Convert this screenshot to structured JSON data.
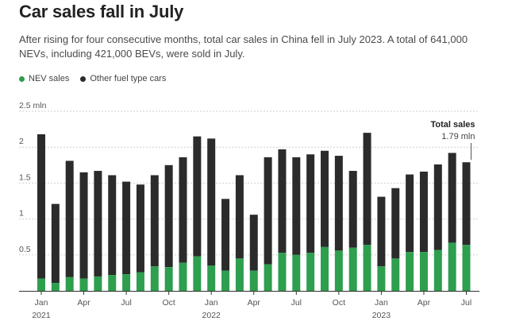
{
  "title": "Car sales fall in July",
  "subtitle": "After rising for four consecutive months, total car sales in China fell in July 2023. A total of 641,000 NEVs, including 421,000 BEVs, were sold in July.",
  "legend": {
    "nev_label": "NEV sales",
    "other_label": "Other fuel type cars"
  },
  "colors": {
    "nev": "#2e9e4f",
    "other": "#2b2b2b",
    "grid": "#cfcfcf",
    "axis": "#333333"
  },
  "annotation": {
    "title": "Total sales",
    "value": "1.79 mln"
  },
  "chart_data": {
    "type": "bar",
    "stacked": true,
    "title": "Car sales fall in July",
    "xlabel": "",
    "ylabel": "",
    "ylim": [
      0,
      2.5
    ],
    "yticks": [
      {
        "value": 0.5,
        "label": "0.5"
      },
      {
        "value": 1,
        "label": "1"
      },
      {
        "value": 1.5,
        "label": "1.5"
      },
      {
        "value": 2,
        "label": "2"
      },
      {
        "value": 2.5,
        "label": "2.5 mln"
      }
    ],
    "categories": [
      "Jan 2021",
      "Feb 2021",
      "Mar 2021",
      "Apr 2021",
      "May 2021",
      "Jun 2021",
      "Jul 2021",
      "Aug 2021",
      "Sep 2021",
      "Oct 2021",
      "Nov 2021",
      "Dec 2021",
      "Jan 2022",
      "Feb 2022",
      "Mar 2022",
      "Apr 2022",
      "May 2022",
      "Jun 2022",
      "Jul 2022",
      "Aug 2022",
      "Sep 2022",
      "Oct 2022",
      "Nov 2022",
      "Dec 2022",
      "Jan 2023",
      "Feb 2023",
      "Mar 2023",
      "Apr 2023",
      "May 2023",
      "Jun 2023",
      "Jul 2023"
    ],
    "x_tick_labels": [
      {
        "index": 0,
        "label": "Jan",
        "year": "2021"
      },
      {
        "index": 3,
        "label": "Apr"
      },
      {
        "index": 6,
        "label": "Jul"
      },
      {
        "index": 9,
        "label": "Oct"
      },
      {
        "index": 12,
        "label": "Jan",
        "year": "2022"
      },
      {
        "index": 15,
        "label": "Apr"
      },
      {
        "index": 18,
        "label": "Jul"
      },
      {
        "index": 21,
        "label": "Oct"
      },
      {
        "index": 24,
        "label": "Jan",
        "year": "2023"
      },
      {
        "index": 27,
        "label": "Apr"
      },
      {
        "index": 30,
        "label": "Jul"
      }
    ],
    "series": [
      {
        "name": "NEV sales",
        "values": [
          0.17,
          0.11,
          0.19,
          0.17,
          0.2,
          0.22,
          0.23,
          0.26,
          0.34,
          0.33,
          0.39,
          0.48,
          0.35,
          0.28,
          0.45,
          0.28,
          0.37,
          0.53,
          0.5,
          0.53,
          0.61,
          0.56,
          0.6,
          0.64,
          0.34,
          0.45,
          0.54,
          0.54,
          0.57,
          0.67,
          0.64
        ]
      },
      {
        "name": "Other fuel type cars",
        "values": [
          2.01,
          1.1,
          1.62,
          1.48,
          1.47,
          1.39,
          1.29,
          1.22,
          1.27,
          1.42,
          1.47,
          1.67,
          1.77,
          1.0,
          1.16,
          0.78,
          1.49,
          1.44,
          1.36,
          1.37,
          1.34,
          1.32,
          1.07,
          1.56,
          0.97,
          0.98,
          1.08,
          1.12,
          1.19,
          1.25,
          1.15
        ]
      }
    ],
    "totals": [
      2.18,
      1.21,
      1.81,
      1.65,
      1.67,
      1.61,
      1.52,
      1.48,
      1.61,
      1.75,
      1.86,
      2.15,
      2.12,
      1.28,
      1.61,
      1.06,
      1.86,
      1.97,
      1.86,
      1.9,
      1.95,
      1.88,
      1.67,
      2.2,
      1.31,
      1.43,
      1.62,
      1.66,
      1.76,
      1.92,
      1.79
    ]
  }
}
